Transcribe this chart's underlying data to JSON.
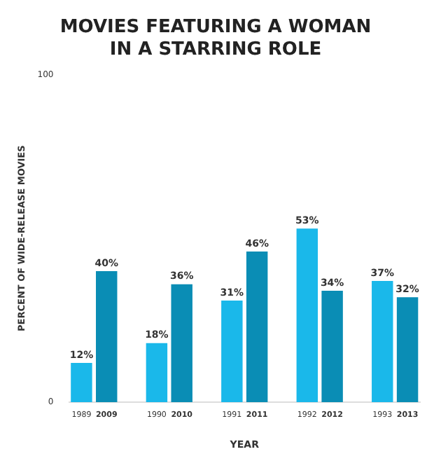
{
  "chart_data": {
    "type": "bar",
    "title": "MOVIES FEATURING A WOMAN\nIN A STARRING ROLE",
    "xlabel": "YEAR",
    "ylabel": "PERCENT OF WIDE-RELEASE MOVIES",
    "categories": [
      "1989",
      "2009",
      null,
      "1990",
      "2010",
      null,
      "1991",
      "2011",
      null,
      "1992",
      "2012",
      null,
      "1993",
      "2013"
    ],
    "values": [
      12,
      40,
      null,
      18,
      36,
      null,
      31,
      46,
      null,
      53,
      34,
      null,
      37,
      32
    ],
    "colors": [
      "#1ab8ea",
      "#0a8db5",
      "#1ab8ea",
      "#1ab8ea",
      "#0a8db5",
      "#1ab8ea",
      "#1ab8ea",
      "#0a8db5",
      "#1ab8ea",
      "#1ab8ea",
      "#0a8db5",
      "#1ab8ea",
      "#1ab8ea",
      "#0a8db5"
    ],
    "value_labels": [
      "12%",
      "40%",
      null,
      "18%",
      "36%",
      null,
      "31%",
      "46%",
      null,
      "53%",
      "34%",
      null,
      "37%",
      "32%"
    ],
    "ylim": [
      0,
      100
    ],
    "yticks": [
      0,
      100
    ],
    "grid": false,
    "legend": false
  }
}
